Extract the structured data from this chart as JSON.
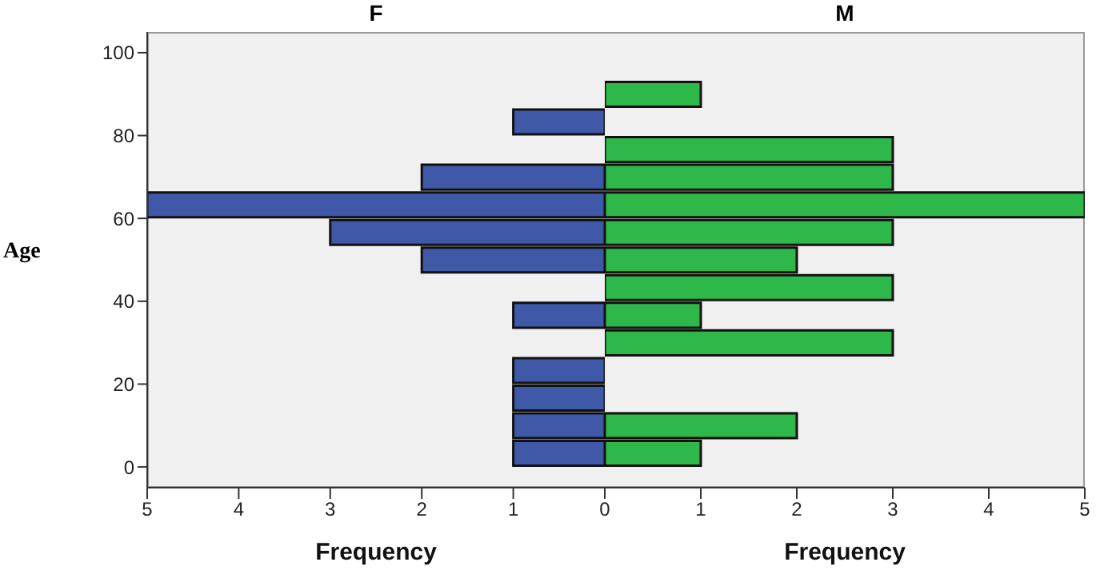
{
  "chart_data": [
    {
      "type": "histogram",
      "orientation": "horizontal",
      "title": "F",
      "xlabel": "Frequency",
      "ylabel": "Age",
      "bins": [
        0,
        6.67,
        13.33,
        20,
        26.67,
        33.33,
        40,
        46.67,
        53.33,
        60,
        66.67,
        73.33,
        80,
        86.67,
        93.33
      ],
      "values": [
        1,
        1,
        1,
        1,
        0,
        1,
        0,
        2,
        3,
        5,
        2,
        0,
        1,
        0
      ],
      "color": "#3f58a8",
      "xlim": [
        5,
        0
      ],
      "xticks": [
        5,
        4,
        3,
        2,
        1,
        0
      ],
      "ylim": [
        -5,
        105
      ],
      "yticks": [
        0,
        20,
        40,
        60,
        80,
        100
      ],
      "grid": false
    },
    {
      "type": "histogram",
      "orientation": "horizontal",
      "title": "M",
      "xlabel": "Frequency",
      "bins": [
        0,
        6.67,
        13.33,
        20,
        26.67,
        33.33,
        40,
        46.67,
        53.33,
        60,
        66.67,
        73.33,
        80,
        86.67,
        93.33
      ],
      "values": [
        1,
        2,
        0,
        0,
        3,
        1,
        3,
        2,
        3,
        5,
        3,
        3,
        0,
        1
      ],
      "color": "#2fb84a",
      "xlim": [
        0,
        5
      ],
      "xticks": [
        1,
        2,
        3,
        4,
        5
      ],
      "ylim": [
        -5,
        105
      ],
      "yticks": [
        0,
        20,
        40,
        60,
        80,
        100
      ],
      "tick_labels": "x",
      "grid": false
    }
  ]
}
